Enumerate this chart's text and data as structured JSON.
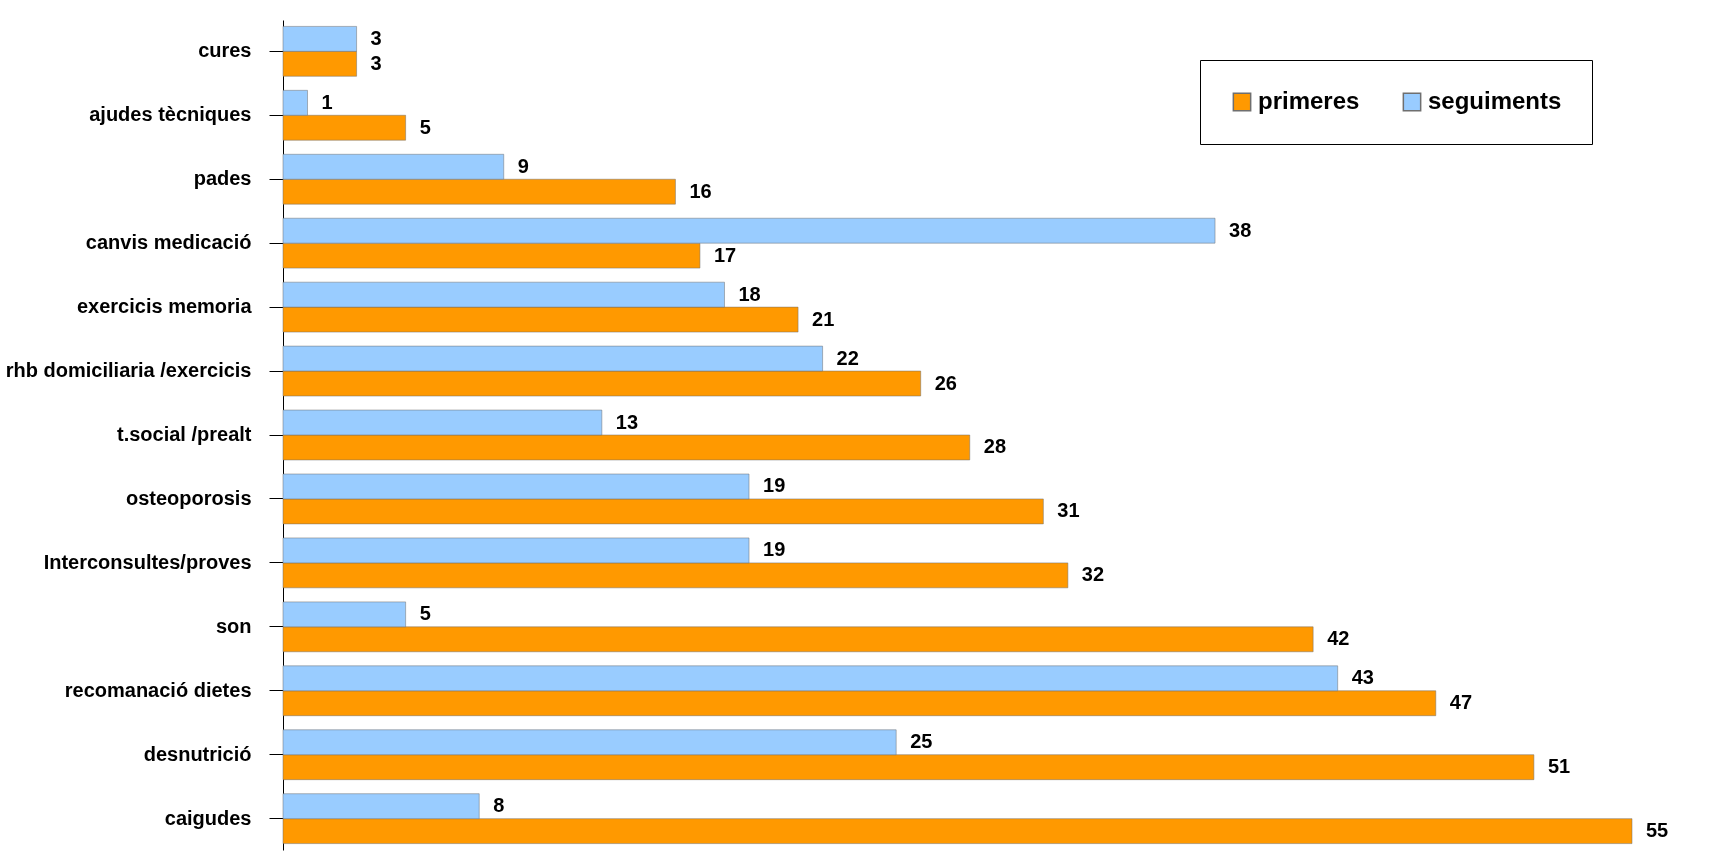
{
  "chart_data": {
    "type": "bar",
    "orientation": "horizontal",
    "categories": [
      "cures",
      "ajudes tècniques",
      "pades",
      "canvis medicació",
      "exercicis memoria",
      "rhb domiciliaria /exercicis",
      "t.social /prealt",
      "osteoporosis",
      "Interconsultes/proves",
      "son",
      "recomanació dietes",
      "desnutrició",
      "caigudes"
    ],
    "series": [
      {
        "name": "primeres",
        "color": "#ff9900",
        "values": [
          3,
          5,
          16,
          17,
          21,
          26,
          28,
          31,
          32,
          42,
          47,
          51,
          55
        ]
      },
      {
        "name": "seguiments",
        "color": "#99ccff",
        "values": [
          3,
          1,
          9,
          38,
          18,
          22,
          13,
          19,
          19,
          5,
          43,
          25,
          8
        ]
      }
    ],
    "data_labels": true,
    "legend": "top right"
  }
}
